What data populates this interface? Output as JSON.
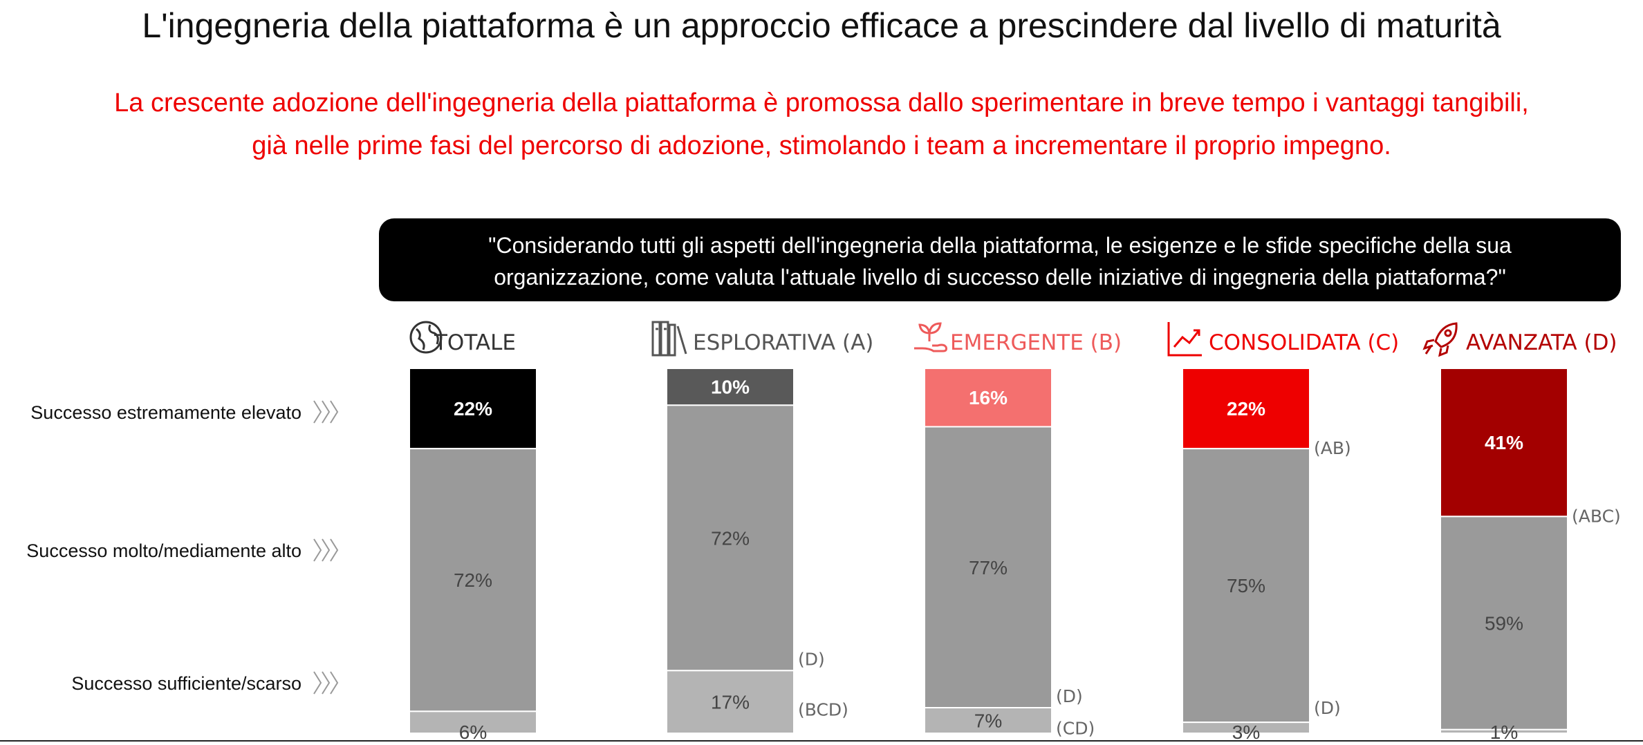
{
  "header": {
    "title": "L'ingegneria della piattaforma è un approccio efficace a prescindere dal livello di maturità",
    "subtitle_lines": [
      "La crescente adozione dell'ingegneria della piattaforma è promossa dallo sperimentare in breve tempo i vantaggi tangibili,",
      "già nelle prime fasi del percorso di adozione, stimolando i team a incrementare il proprio impegno."
    ],
    "question_lines": [
      "\"Considerando tutti gli aspetti dell'ingegneria della piattaforma, le esigenze e le sfide specifiche della sua",
      "organizzazione, come valuta l'attuale livello di successo delle iniziative di ingegneria della piattaforma?\""
    ]
  },
  "chart_data": {
    "type": "bar",
    "stacked": true,
    "normalized": true,
    "categories": [
      "TOTALE",
      "ESPLORATIVA (A)",
      "EMERGENTE (B)",
      "CONSOLIDATA (C)",
      "AVANZATA (D)"
    ],
    "category_icons": [
      "globe-icon",
      "books-icon",
      "sprout-hand-icon",
      "trend-chart-icon",
      "rocket-icon"
    ],
    "category_colors": [
      "#333333",
      "#555555",
      "#ee5a5a",
      "#ee0000",
      "#b30000"
    ],
    "top_colors": [
      "#000000",
      "#595959",
      "#f4706f",
      "#ee0000",
      "#a30000"
    ],
    "series": [
      {
        "name": "Successo estremamente elevato",
        "values": [
          22,
          10,
          16,
          22,
          41
        ],
        "value_labels": [
          "22%",
          "10%",
          "16%",
          "22%",
          "41%"
        ]
      },
      {
        "name": "Successo molto/mediamente alto",
        "values": [
          72,
          72,
          77,
          75,
          59
        ],
        "value_labels": [
          "72%",
          "72%",
          "77%",
          "75%",
          "59%"
        ]
      },
      {
        "name": "Successo sufficiente/scarso",
        "values": [
          6,
          17,
          7,
          3,
          1
        ],
        "value_labels": [
          "6%",
          "17%",
          "7%",
          "3%",
          "1%"
        ]
      }
    ],
    "significance": {
      "Successo estremamente elevato": [
        "",
        "",
        "",
        "(AB)",
        "(ABC)"
      ],
      "Successo molto/mediamente alto": [
        "",
        "(D)",
        "(D)",
        "(D)",
        ""
      ],
      "Successo sufficiente/scarso": [
        "",
        "(BCD)",
        "(CD)",
        "",
        ""
      ]
    },
    "legend_position": "left",
    "grid": false
  }
}
